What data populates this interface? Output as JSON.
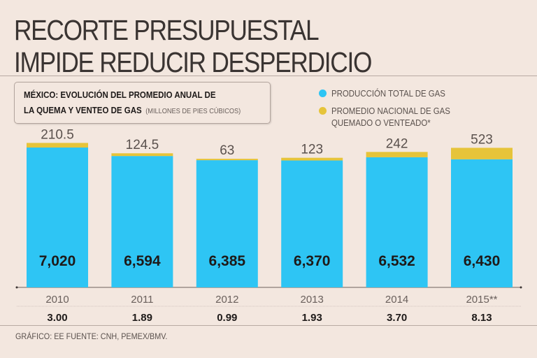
{
  "title_lines": [
    "RECORTE PRESUPUESTAL",
    "IMPIDE REDUCIR DESPERDICIO"
  ],
  "chart_data": {
    "type": "bar",
    "stacked": true,
    "title_lines": [
      "MÉXICO: EVOLUCIÓN DEL PROMEDIO ANUAL DE",
      "LA QUEMA Y VENTEO DE GAS"
    ],
    "units": "(MILLONES DE PIES CÚBICOS)",
    "categories": [
      "2010",
      "2011",
      "2012",
      "2013",
      "2014",
      "2015**"
    ],
    "series": [
      {
        "name": "PRODUCCIÓN TOTAL DE GAS",
        "color": "#2ec5f4",
        "values": [
          7020,
          6594,
          6385,
          6370,
          6532,
          6430
        ],
        "labels": [
          "7,020",
          "6,594",
          "6,385",
          "6,370",
          "6,532",
          "6,430"
        ]
      },
      {
        "name": "PROMEDIO NACIONAL DE GAS QUEMADO O VENTEADO*",
        "name_lines": [
          "PROMEDIO NACIONAL DE GAS",
          "QUEMADO O VENTEADO*"
        ],
        "color": "#e6c43a",
        "values": [
          210.5,
          124.5,
          63,
          123,
          242,
          523
        ],
        "labels": [
          "210.5",
          "124.5",
          "63",
          "123",
          "242",
          "523"
        ]
      }
    ],
    "percent_row": [
      "3.00",
      "1.89",
      "0.99",
      "1.93",
      "3.70",
      "8.13"
    ],
    "legend_position": "top-right",
    "grid": false
  },
  "footer": "GRÁFICO: EE  FUENTE: CNH, PEMEX/BMV."
}
